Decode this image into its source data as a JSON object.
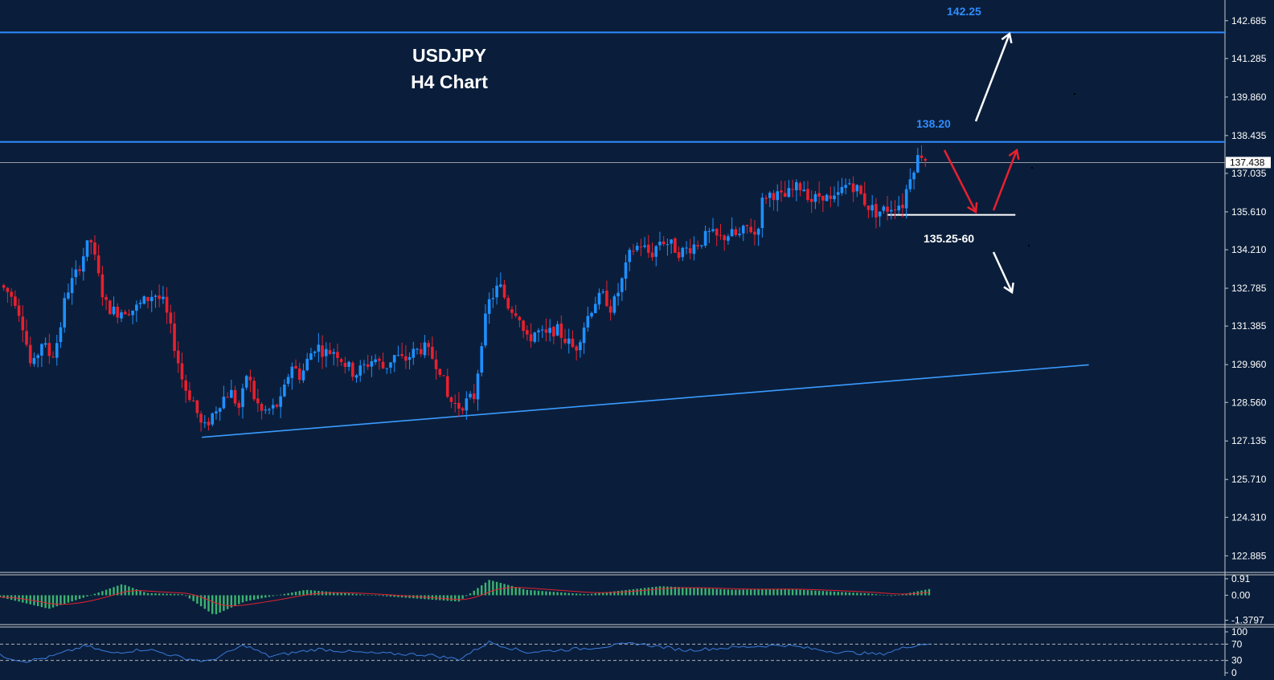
{
  "colors": {
    "background": "#0a1e3b",
    "bull_candle": "#1e90ff",
    "bear_candle": "#e8202e",
    "level_line": "#2f8cff",
    "trend_line": "#3b9bff",
    "macd_hist": "#3cb371",
    "macd_signal": "#e8202e",
    "rsi_line": "#3b7bdb",
    "arrow_white": "#ffffff",
    "arrow_red": "#e8202e",
    "axis_text": "#ffffff"
  },
  "chart_data": [
    {
      "type": "candlestick",
      "symbol": "USDJPY",
      "timeframe": "H4 Chart",
      "ylim": [
        122.3,
        143.0
      ],
      "y_ticks": [
        "142.685",
        "141.285",
        "139.860",
        "138.435",
        "137.035",
        "135.610",
        "134.210",
        "132.785",
        "131.385",
        "129.960",
        "128.560",
        "127.135",
        "125.710",
        "124.310",
        "122.885"
      ],
      "current_price": "137.438",
      "levels": [
        {
          "label": "142.25",
          "value": 142.25
        },
        {
          "label": "138.20",
          "value": 138.2
        },
        {
          "label": "135.25-60",
          "value": 135.5
        }
      ],
      "trendline": [
        {
          "x": 0.165,
          "y": 127.27
        },
        {
          "x": 0.89,
          "y": 129.95
        }
      ],
      "price_path": [
        {
          "x": 0.0,
          "y": 132.9
        },
        {
          "x": 0.012,
          "y": 132.4
        },
        {
          "x": 0.018,
          "y": 131.6
        },
        {
          "x": 0.026,
          "y": 129.7
        },
        {
          "x": 0.034,
          "y": 130.8
        },
        {
          "x": 0.042,
          "y": 130.2
        },
        {
          "x": 0.048,
          "y": 131.0
        },
        {
          "x": 0.054,
          "y": 132.6
        },
        {
          "x": 0.062,
          "y": 133.3
        },
        {
          "x": 0.068,
          "y": 134.0
        },
        {
          "x": 0.074,
          "y": 134.6
        },
        {
          "x": 0.08,
          "y": 133.3
        },
        {
          "x": 0.086,
          "y": 132.2
        },
        {
          "x": 0.094,
          "y": 131.9
        },
        {
          "x": 0.102,
          "y": 132.0
        },
        {
          "x": 0.11,
          "y": 132.0
        },
        {
          "x": 0.118,
          "y": 132.3
        },
        {
          "x": 0.126,
          "y": 132.6
        },
        {
          "x": 0.134,
          "y": 132.2
        },
        {
          "x": 0.142,
          "y": 130.8
        },
        {
          "x": 0.15,
          "y": 129.2
        },
        {
          "x": 0.158,
          "y": 128.6
        },
        {
          "x": 0.166,
          "y": 127.5
        },
        {
          "x": 0.172,
          "y": 128.0
        },
        {
          "x": 0.18,
          "y": 128.6
        },
        {
          "x": 0.188,
          "y": 129.0
        },
        {
          "x": 0.196,
          "y": 128.3
        },
        {
          "x": 0.202,
          "y": 129.7
        },
        {
          "x": 0.208,
          "y": 128.7
        },
        {
          "x": 0.214,
          "y": 128.2
        },
        {
          "x": 0.222,
          "y": 128.3
        },
        {
          "x": 0.23,
          "y": 128.6
        },
        {
          "x": 0.238,
          "y": 130.0
        },
        {
          "x": 0.246,
          "y": 129.5
        },
        {
          "x": 0.252,
          "y": 130.2
        },
        {
          "x": 0.258,
          "y": 130.7
        },
        {
          "x": 0.266,
          "y": 130.4
        },
        {
          "x": 0.274,
          "y": 130.5
        },
        {
          "x": 0.282,
          "y": 130.0
        },
        {
          "x": 0.29,
          "y": 129.6
        },
        {
          "x": 0.298,
          "y": 129.9
        },
        {
          "x": 0.306,
          "y": 130.2
        },
        {
          "x": 0.314,
          "y": 129.8
        },
        {
          "x": 0.322,
          "y": 130.3
        },
        {
          "x": 0.33,
          "y": 130.1
        },
        {
          "x": 0.338,
          "y": 130.4
        },
        {
          "x": 0.346,
          "y": 130.6
        },
        {
          "x": 0.354,
          "y": 130.2
        },
        {
          "x": 0.36,
          "y": 129.8
        },
        {
          "x": 0.366,
          "y": 128.7
        },
        {
          "x": 0.374,
          "y": 128.4
        },
        {
          "x": 0.382,
          "y": 128.6
        },
        {
          "x": 0.388,
          "y": 128.8
        },
        {
          "x": 0.394,
          "y": 131.0
        },
        {
          "x": 0.4,
          "y": 132.3
        },
        {
          "x": 0.408,
          "y": 132.9
        },
        {
          "x": 0.416,
          "y": 132.1
        },
        {
          "x": 0.424,
          "y": 131.9
        },
        {
          "x": 0.43,
          "y": 130.8
        },
        {
          "x": 0.438,
          "y": 131.2
        },
        {
          "x": 0.446,
          "y": 131.0
        },
        {
          "x": 0.454,
          "y": 131.3
        },
        {
          "x": 0.462,
          "y": 130.9
        },
        {
          "x": 0.47,
          "y": 130.5
        },
        {
          "x": 0.478,
          "y": 131.5
        },
        {
          "x": 0.486,
          "y": 132.3
        },
        {
          "x": 0.494,
          "y": 132.5
        },
        {
          "x": 0.5,
          "y": 132.0
        },
        {
          "x": 0.508,
          "y": 133.0
        },
        {
          "x": 0.516,
          "y": 134.2
        },
        {
          "x": 0.524,
          "y": 134.4
        },
        {
          "x": 0.532,
          "y": 134.0
        },
        {
          "x": 0.54,
          "y": 134.6
        },
        {
          "x": 0.548,
          "y": 134.4
        },
        {
          "x": 0.556,
          "y": 134.1
        },
        {
          "x": 0.564,
          "y": 134.3
        },
        {
          "x": 0.572,
          "y": 134.5
        },
        {
          "x": 0.58,
          "y": 134.8
        },
        {
          "x": 0.588,
          "y": 134.6
        },
        {
          "x": 0.596,
          "y": 134.8
        },
        {
          "x": 0.604,
          "y": 134.7
        },
        {
          "x": 0.612,
          "y": 135.1
        },
        {
          "x": 0.618,
          "y": 134.7
        },
        {
          "x": 0.624,
          "y": 136.2
        },
        {
          "x": 0.632,
          "y": 136.3
        },
        {
          "x": 0.64,
          "y": 136.1
        },
        {
          "x": 0.648,
          "y": 136.4
        },
        {
          "x": 0.656,
          "y": 136.6
        },
        {
          "x": 0.664,
          "y": 136.0
        },
        {
          "x": 0.672,
          "y": 136.3
        },
        {
          "x": 0.68,
          "y": 135.9
        },
        {
          "x": 0.688,
          "y": 136.4
        },
        {
          "x": 0.694,
          "y": 136.7
        },
        {
          "x": 0.7,
          "y": 136.5
        },
        {
          "x": 0.708,
          "y": 135.9
        },
        {
          "x": 0.716,
          "y": 135.6
        },
        {
          "x": 0.724,
          "y": 135.7
        },
        {
          "x": 0.732,
          "y": 135.9
        },
        {
          "x": 0.738,
          "y": 135.9
        },
        {
          "x": 0.744,
          "y": 137.0
        },
        {
          "x": 0.75,
          "y": 137.6
        },
        {
          "x": 0.754,
          "y": 137.8
        },
        {
          "x": 0.758,
          "y": 137.44
        }
      ],
      "arrows": [
        {
          "color": "white",
          "direction": "up-to-142.25"
        },
        {
          "color": "red",
          "direction": "down-to-135.25-60"
        },
        {
          "color": "red",
          "direction": "up-to-138.20"
        },
        {
          "color": "white",
          "direction": "down-below-135.25-60"
        }
      ]
    },
    {
      "type": "bar",
      "indicator": "MACD",
      "y_ticks": [
        "0.91",
        "0.00",
        "-1.3797"
      ],
      "ylim": [
        -1.4,
        0.95
      ],
      "histogram_shape": [
        {
          "x": 0.0,
          "y": -0.1
        },
        {
          "x": 0.04,
          "y": -0.75
        },
        {
          "x": 0.07,
          "y": -0.1
        },
        {
          "x": 0.1,
          "y": 0.62
        },
        {
          "x": 0.12,
          "y": 0.12
        },
        {
          "x": 0.15,
          "y": 0.05
        },
        {
          "x": 0.175,
          "y": -1.1
        },
        {
          "x": 0.2,
          "y": -0.35
        },
        {
          "x": 0.25,
          "y": 0.3
        },
        {
          "x": 0.3,
          "y": 0.02
        },
        {
          "x": 0.375,
          "y": -0.35
        },
        {
          "x": 0.4,
          "y": 0.85
        },
        {
          "x": 0.43,
          "y": 0.3
        },
        {
          "x": 0.48,
          "y": 0.05
        },
        {
          "x": 0.54,
          "y": 0.5
        },
        {
          "x": 0.6,
          "y": 0.3
        },
        {
          "x": 0.64,
          "y": 0.35
        },
        {
          "x": 0.71,
          "y": 0.1
        },
        {
          "x": 0.73,
          "y": -0.05
        },
        {
          "x": 0.76,
          "y": 0.35
        }
      ]
    },
    {
      "type": "line",
      "indicator": "RSI",
      "y_ticks": [
        "100",
        "70",
        "30",
        "0"
      ],
      "ylim": [
        0,
        100
      ],
      "values": [
        {
          "x": 0.0,
          "y": 42
        },
        {
          "x": 0.02,
          "y": 28
        },
        {
          "x": 0.04,
          "y": 38
        },
        {
          "x": 0.07,
          "y": 66
        },
        {
          "x": 0.09,
          "y": 48
        },
        {
          "x": 0.12,
          "y": 58
        },
        {
          "x": 0.15,
          "y": 36
        },
        {
          "x": 0.17,
          "y": 27
        },
        {
          "x": 0.2,
          "y": 68
        },
        {
          "x": 0.22,
          "y": 40
        },
        {
          "x": 0.26,
          "y": 58
        },
        {
          "x": 0.3,
          "y": 48
        },
        {
          "x": 0.35,
          "y": 44
        },
        {
          "x": 0.375,
          "y": 33
        },
        {
          "x": 0.4,
          "y": 75
        },
        {
          "x": 0.43,
          "y": 50
        },
        {
          "x": 0.48,
          "y": 60
        },
        {
          "x": 0.52,
          "y": 72
        },
        {
          "x": 0.56,
          "y": 55
        },
        {
          "x": 0.6,
          "y": 62
        },
        {
          "x": 0.64,
          "y": 68
        },
        {
          "x": 0.68,
          "y": 52
        },
        {
          "x": 0.72,
          "y": 45
        },
        {
          "x": 0.745,
          "y": 66
        },
        {
          "x": 0.76,
          "y": 72
        }
      ]
    }
  ]
}
